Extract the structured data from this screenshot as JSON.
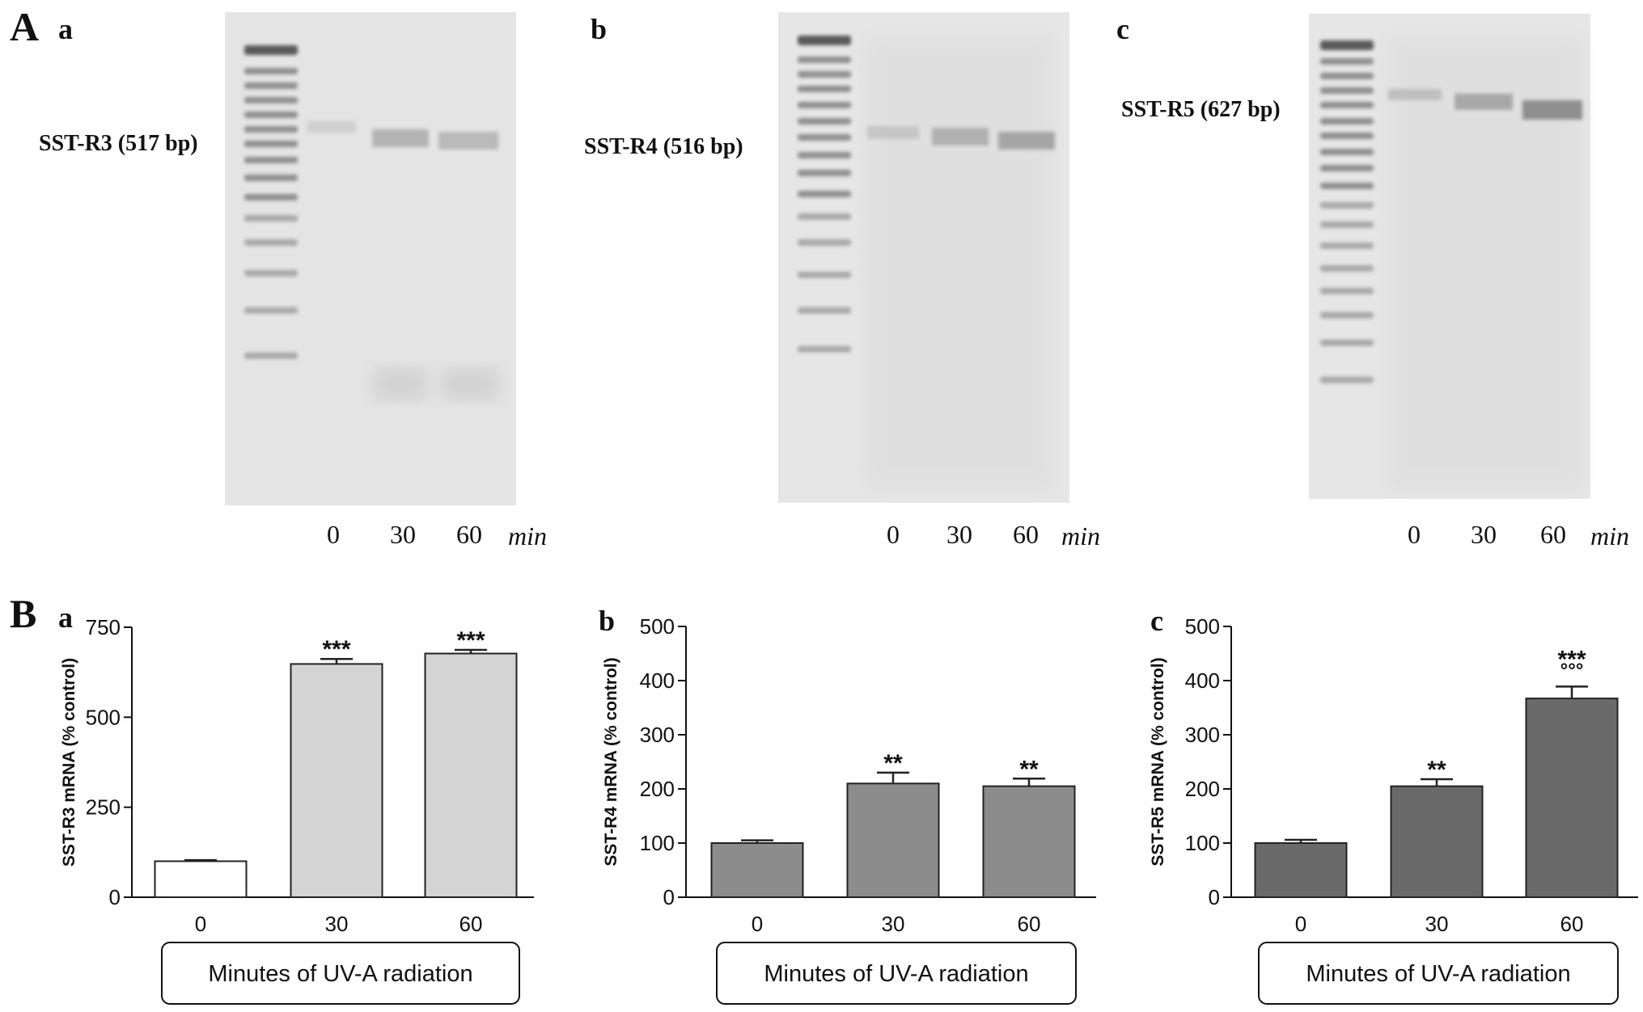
{
  "figure": {
    "panel_A_label": "A",
    "panel_B_label": "B"
  },
  "gels": [
    {
      "sub_label": "a",
      "band_label": "SST-R3 (517 bp)",
      "lanes": [
        "0",
        "30",
        "60"
      ],
      "unit": "min"
    },
    {
      "sub_label": "b",
      "band_label": "SST-R4 (516 bp)",
      "lanes": [
        "0",
        "30",
        "60"
      ],
      "unit": "min"
    },
    {
      "sub_label": "c",
      "band_label": "SST-R5 (627 bp)",
      "lanes": [
        "0",
        "30",
        "60"
      ],
      "unit": "min"
    }
  ],
  "chart_data": [
    {
      "type": "bar",
      "panel": "a",
      "categories": [
        "0",
        "30",
        "60"
      ],
      "values": [
        100,
        648,
        677
      ],
      "errors": [
        3,
        14,
        10
      ],
      "significance": [
        "",
        "***",
        "***"
      ],
      "significance2": [
        "",
        "",
        ""
      ],
      "xlabel": "Minutes of UV-A radiation",
      "ylabel": "SST-R3 mRNA (% control)",
      "ylim": [
        0,
        750
      ],
      "yticks": [
        0,
        250,
        500,
        750
      ],
      "bar_colors": [
        "#ffffff",
        "#d4d4d4",
        "#d4d4d4"
      ]
    },
    {
      "type": "bar",
      "panel": "b",
      "categories": [
        "0",
        "30",
        "60"
      ],
      "values": [
        100,
        210,
        205
      ],
      "errors": [
        5,
        20,
        14
      ],
      "significance": [
        "",
        "**",
        "**"
      ],
      "significance2": [
        "",
        "",
        ""
      ],
      "xlabel": "Minutes of UV-A radiation",
      "ylabel": "SST-R4 mRNA (% control)",
      "ylim": [
        0,
        500
      ],
      "yticks": [
        0,
        100,
        200,
        300,
        400,
        500
      ],
      "bar_colors": [
        "#8c8c8c",
        "#8c8c8c",
        "#8c8c8c"
      ]
    },
    {
      "type": "bar",
      "panel": "c",
      "categories": [
        "0",
        "30",
        "60"
      ],
      "values": [
        100,
        205,
        367
      ],
      "errors": [
        6,
        13,
        22
      ],
      "significance": [
        "",
        "**",
        "***"
      ],
      "significance2": [
        "",
        "",
        "°°°"
      ],
      "xlabel": "Minutes of UV-A radiation",
      "ylabel": "SST-R5 mRNA (% control)",
      "ylim": [
        0,
        500
      ],
      "yticks": [
        0,
        100,
        200,
        300,
        400,
        500
      ],
      "bar_colors": [
        "#6a6a6a",
        "#6a6a6a",
        "#6a6a6a"
      ]
    }
  ]
}
